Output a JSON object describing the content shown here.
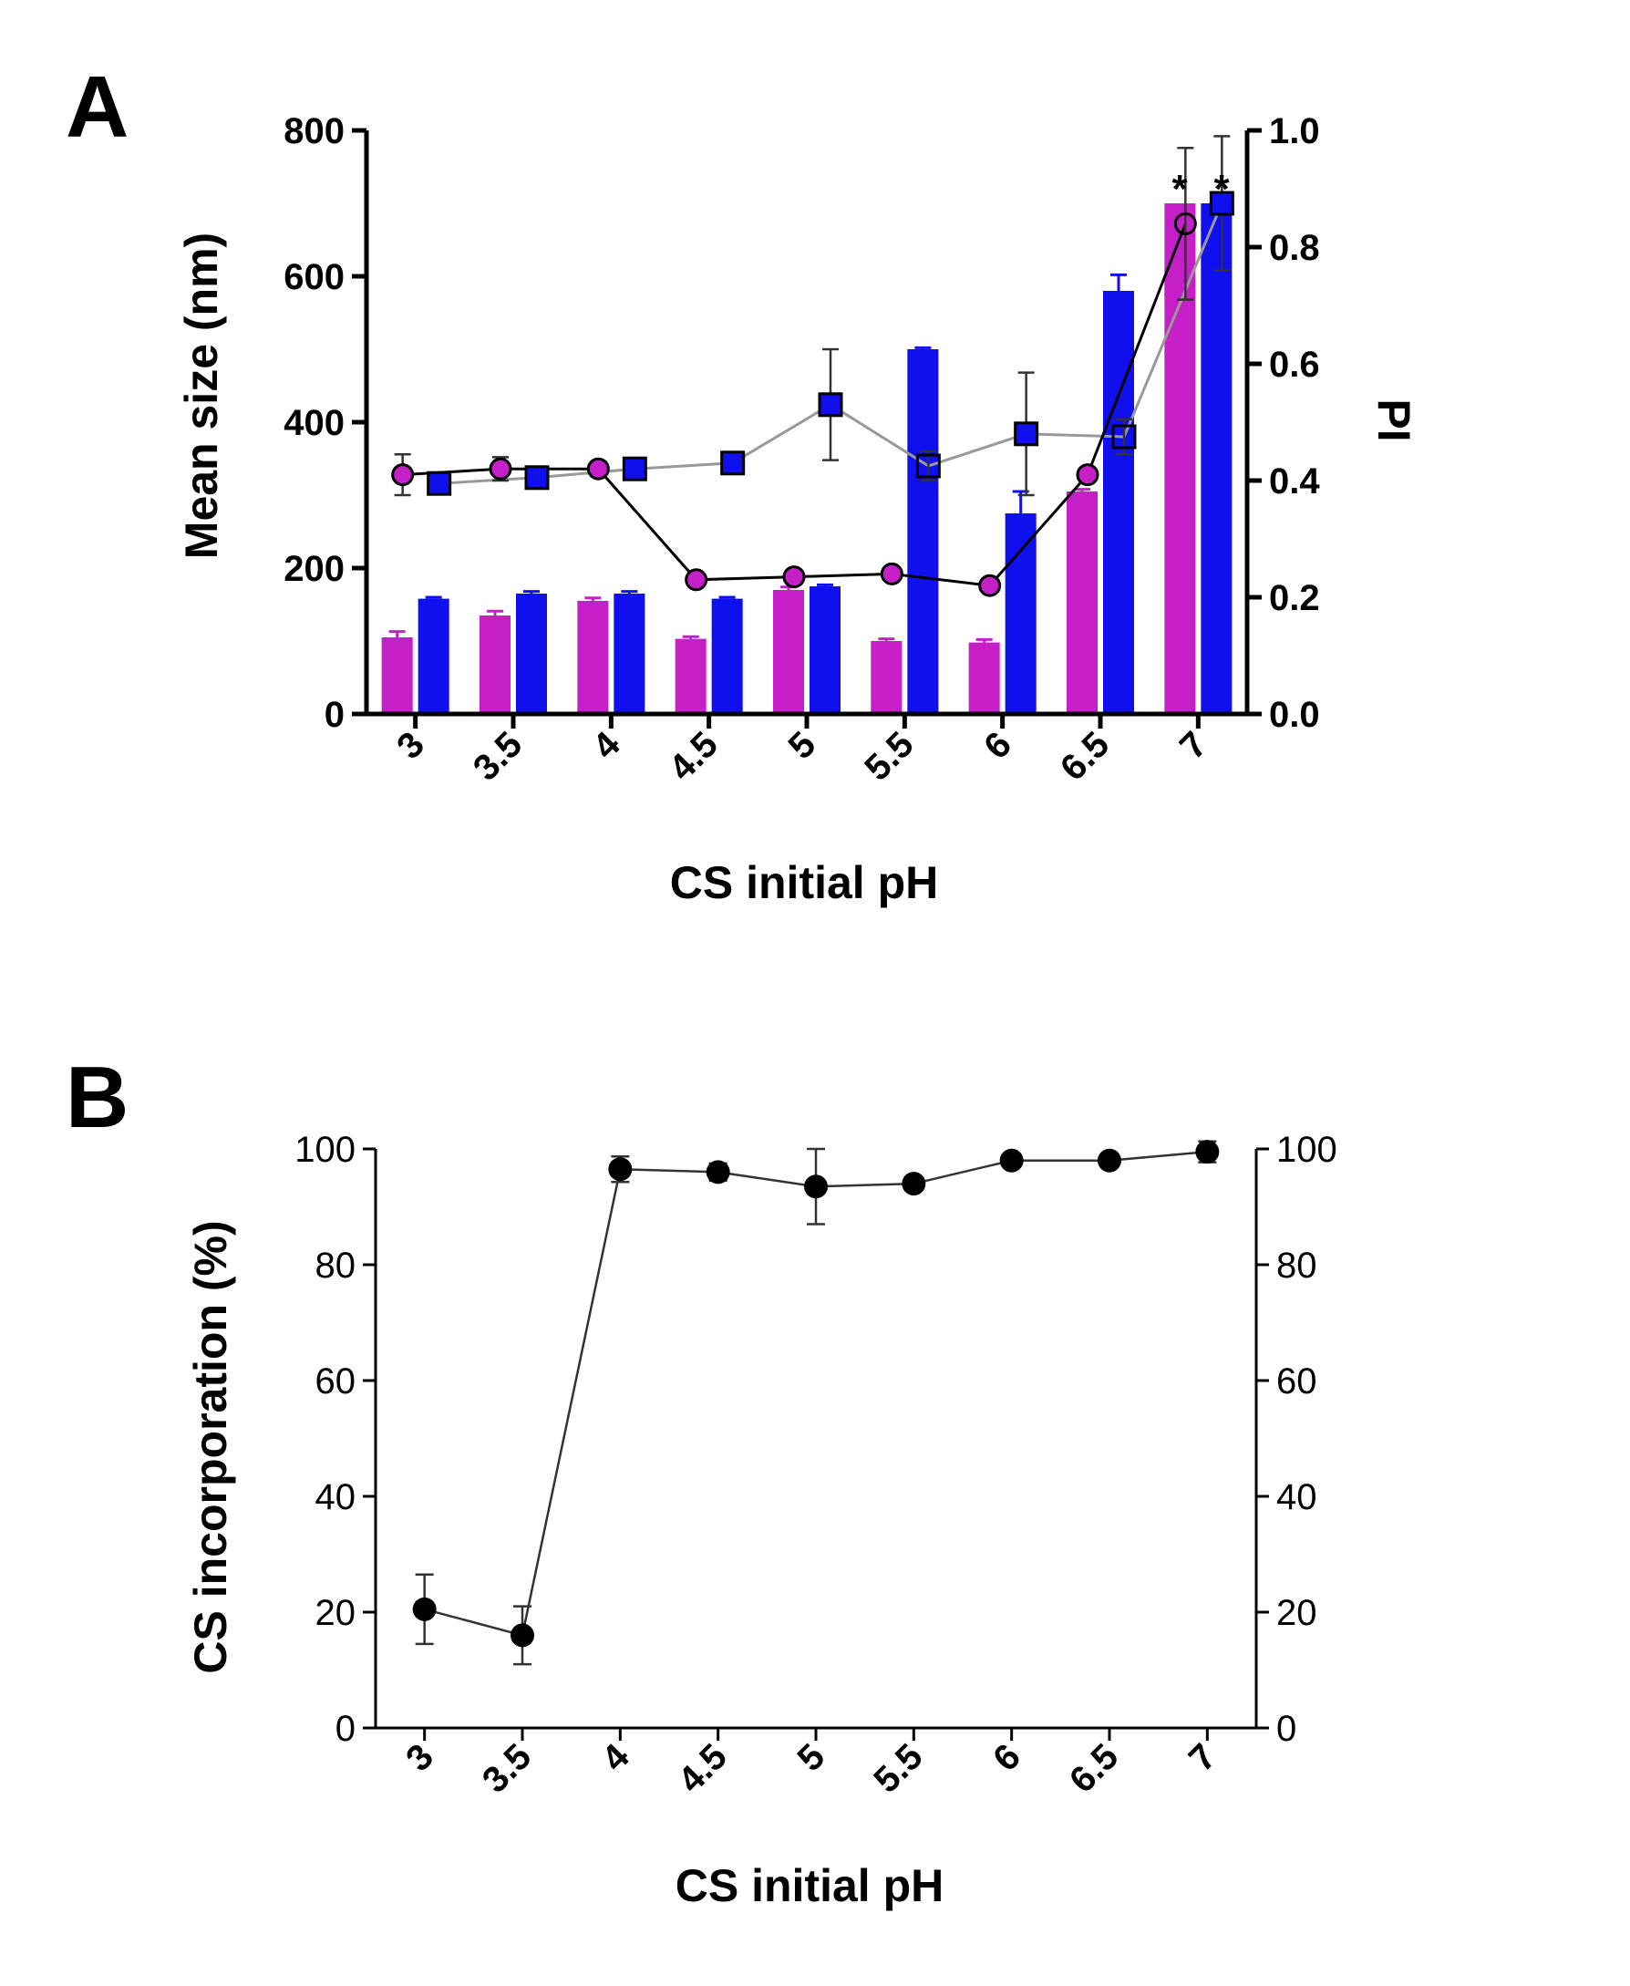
{
  "chart_data": [
    {
      "panel_label": "A",
      "type": "bar",
      "categories": [
        "3",
        "3.5",
        "4",
        "4.5",
        "5",
        "5.5",
        "6",
        "6.5",
        "7"
      ],
      "xlabel": "CS initial pH",
      "ylabel": "Mean size (nm)",
      "y2label": "PI",
      "ylim": [
        0,
        800
      ],
      "y2lim": [
        0,
        1.0
      ],
      "yticks": [
        "0",
        "200",
        "400",
        "600",
        "800"
      ],
      "y2ticks": [
        "0.0",
        "0.2",
        "0.4",
        "0.6",
        "0.8",
        "1.0"
      ],
      "bar_series": [
        {
          "name": "Mean size (magenta)",
          "color": "#c71fc7",
          "values": [
            105,
            135,
            155,
            103,
            170,
            100,
            98,
            305,
            700
          ],
          "errors": [
            8,
            6,
            4,
            3,
            4,
            3,
            4,
            3,
            0
          ]
        },
        {
          "name": "Mean size (blue)",
          "color": "#1010ee",
          "values": [
            158,
            165,
            165,
            158,
            175,
            500,
            275,
            580,
            700
          ],
          "errors": [
            2,
            3,
            3,
            2,
            2,
            2,
            30,
            22,
            0
          ]
        }
      ],
      "line_series": [
        {
          "name": "PI (circles)",
          "color": "#000000",
          "marker": "circle",
          "marker_fill": "#c71fc7",
          "values": [
            0.41,
            0.42,
            0.42,
            0.23,
            0.235,
            0.24,
            0.22,
            0.41,
            0.84
          ],
          "errors": [
            0.035,
            0.02,
            0.008,
            0.01,
            0.01,
            0.01,
            0.01,
            0.01,
            0.13
          ]
        },
        {
          "name": "PI (squares)",
          "color": "#999999",
          "marker": "square",
          "marker_fill": "#1010ee",
          "values": [
            0.395,
            0.405,
            0.42,
            0.43,
            0.53,
            0.425,
            0.48,
            0.475,
            0.875
          ],
          "errors": [
            0.005,
            0.005,
            0.005,
            0.015,
            0.095,
            0.025,
            0.105,
            0.03,
            0.115
          ]
        }
      ],
      "annotations": [
        "*",
        "*"
      ],
      "grid": false
    },
    {
      "panel_label": "B",
      "type": "line",
      "categories": [
        "3",
        "3.5",
        "4",
        "4.5",
        "5",
        "5.5",
        "6",
        "6.5",
        "7"
      ],
      "xlabel": "CS initial pH",
      "ylabel": "CS incorporation (%)",
      "ylim": [
        0,
        100
      ],
      "yticks": [
        "0",
        "20",
        "40",
        "60",
        "80",
        "100"
      ],
      "y2ticks": [
        "0",
        "20",
        "40",
        "60",
        "80",
        "100"
      ],
      "series": [
        {
          "name": "CS incorporation",
          "color": "#000000",
          "values": [
            20.5,
            16,
            96.5,
            96,
            93.5,
            94,
            98,
            98,
            99.5
          ],
          "errors": [
            6,
            5,
            2.2,
            1.5,
            6.5,
            1,
            1,
            1,
            1.8
          ]
        }
      ],
      "grid": false
    }
  ]
}
